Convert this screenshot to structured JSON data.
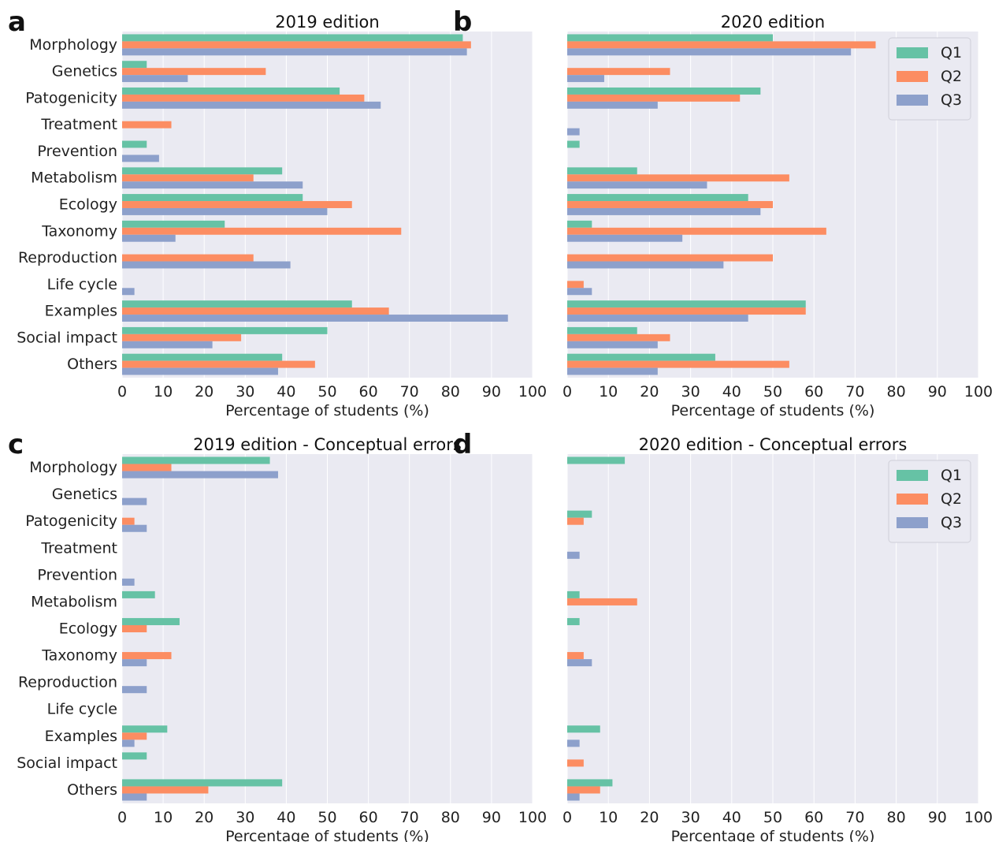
{
  "colors": {
    "Q1": "#66c2a5",
    "Q2": "#fc8d62",
    "Q3": "#8da0cb",
    "plot_background": "#eaeaf2",
    "grid": "#ffffff"
  },
  "chart_data": [
    {
      "panel": "a",
      "type": "bar",
      "orientation": "horizontal",
      "title": "2019 edition",
      "xlabel": "Percentage of students (%)",
      "xlim": [
        0,
        100
      ],
      "xticks": [
        0,
        10,
        20,
        30,
        40,
        50,
        60,
        70,
        80,
        90,
        100
      ],
      "grid": true,
      "legend": null,
      "categories": [
        "Morphology",
        "Genetics",
        "Patogenicity",
        "Treatment",
        "Prevention",
        "Metabolism",
        "Ecology",
        "Taxonomy",
        "Reproduction",
        "Life cycle",
        "Examples",
        "Social impact",
        "Others"
      ],
      "series": [
        {
          "name": "Q1",
          "values": [
            83,
            6,
            53,
            0,
            6,
            39,
            44,
            25,
            0,
            0,
            56,
            50,
            39
          ]
        },
        {
          "name": "Q2",
          "values": [
            85,
            35,
            59,
            12,
            0,
            32,
            56,
            68,
            32,
            0,
            65,
            29,
            47
          ]
        },
        {
          "name": "Q3",
          "values": [
            84,
            16,
            63,
            0,
            9,
            44,
            50,
            13,
            41,
            3,
            94,
            22,
            38
          ]
        }
      ]
    },
    {
      "panel": "b",
      "type": "bar",
      "orientation": "horizontal",
      "title": "2020 edition",
      "xlabel": "Percentage of students (%)",
      "xlim": [
        0,
        100
      ],
      "xticks": [
        0,
        10,
        20,
        30,
        40,
        50,
        60,
        70,
        80,
        90,
        100
      ],
      "grid": true,
      "legend": "top-right",
      "categories": [
        "Morphology",
        "Genetics",
        "Patogenicity",
        "Treatment",
        "Prevention",
        "Metabolism",
        "Ecology",
        "Taxonomy",
        "Reproduction",
        "Life cycle",
        "Examples",
        "Social impact",
        "Others"
      ],
      "series": [
        {
          "name": "Q1",
          "values": [
            50,
            0,
            47,
            0,
            3,
            17,
            44,
            6,
            0,
            0,
            58,
            17,
            36
          ]
        },
        {
          "name": "Q2",
          "values": [
            75,
            25,
            42,
            0,
            0,
            54,
            50,
            63,
            50,
            4,
            58,
            25,
            54
          ]
        },
        {
          "name": "Q3",
          "values": [
            69,
            9,
            22,
            3,
            0,
            34,
            47,
            28,
            38,
            6,
            44,
            22,
            22
          ]
        }
      ]
    },
    {
      "panel": "c",
      "type": "bar",
      "orientation": "horizontal",
      "title": "2019 edition - Conceptual errors",
      "xlabel": "Percentage of students (%)",
      "xlim": [
        0,
        100
      ],
      "xticks": [
        0,
        10,
        20,
        30,
        40,
        50,
        60,
        70,
        80,
        90,
        100
      ],
      "grid": true,
      "legend": null,
      "categories": [
        "Morphology",
        "Genetics",
        "Patogenicity",
        "Treatment",
        "Prevention",
        "Metabolism",
        "Ecology",
        "Taxonomy",
        "Reproduction",
        "Life cycle",
        "Examples",
        "Social impact",
        "Others"
      ],
      "series": [
        {
          "name": "Q1",
          "values": [
            36,
            0,
            0,
            0,
            0,
            8,
            14,
            0,
            0,
            0,
            11,
            6,
            39
          ]
        },
        {
          "name": "Q2",
          "values": [
            12,
            0,
            3,
            0,
            0,
            0,
            6,
            12,
            0,
            0,
            6,
            0,
            21
          ]
        },
        {
          "name": "Q3",
          "values": [
            38,
            6,
            6,
            0,
            3,
            0,
            0,
            6,
            6,
            0,
            3,
            0,
            6
          ]
        }
      ]
    },
    {
      "panel": "d",
      "type": "bar",
      "orientation": "horizontal",
      "title": "2020 edition - Conceptual errors",
      "xlabel": "Percentage of students (%)",
      "xlim": [
        0,
        100
      ],
      "xticks": [
        0,
        10,
        20,
        30,
        40,
        50,
        60,
        70,
        80,
        90,
        100
      ],
      "grid": true,
      "legend": "top-right",
      "categories": [
        "Morphology",
        "Genetics",
        "Patogenicity",
        "Treatment",
        "Prevention",
        "Metabolism",
        "Ecology",
        "Taxonomy",
        "Reproduction",
        "Life cycle",
        "Examples",
        "Social impact",
        "Others"
      ],
      "series": [
        {
          "name": "Q1",
          "values": [
            14,
            0,
            6,
            0,
            0,
            3,
            3,
            0,
            0,
            0,
            8,
            0,
            11
          ]
        },
        {
          "name": "Q2",
          "values": [
            0,
            0,
            4,
            0,
            0,
            17,
            0,
            4,
            0,
            0,
            0,
            4,
            8
          ]
        },
        {
          "name": "Q3",
          "values": [
            0,
            0,
            0,
            3,
            0,
            0,
            0,
            6,
            0,
            0,
            3,
            0,
            3
          ]
        }
      ]
    }
  ]
}
